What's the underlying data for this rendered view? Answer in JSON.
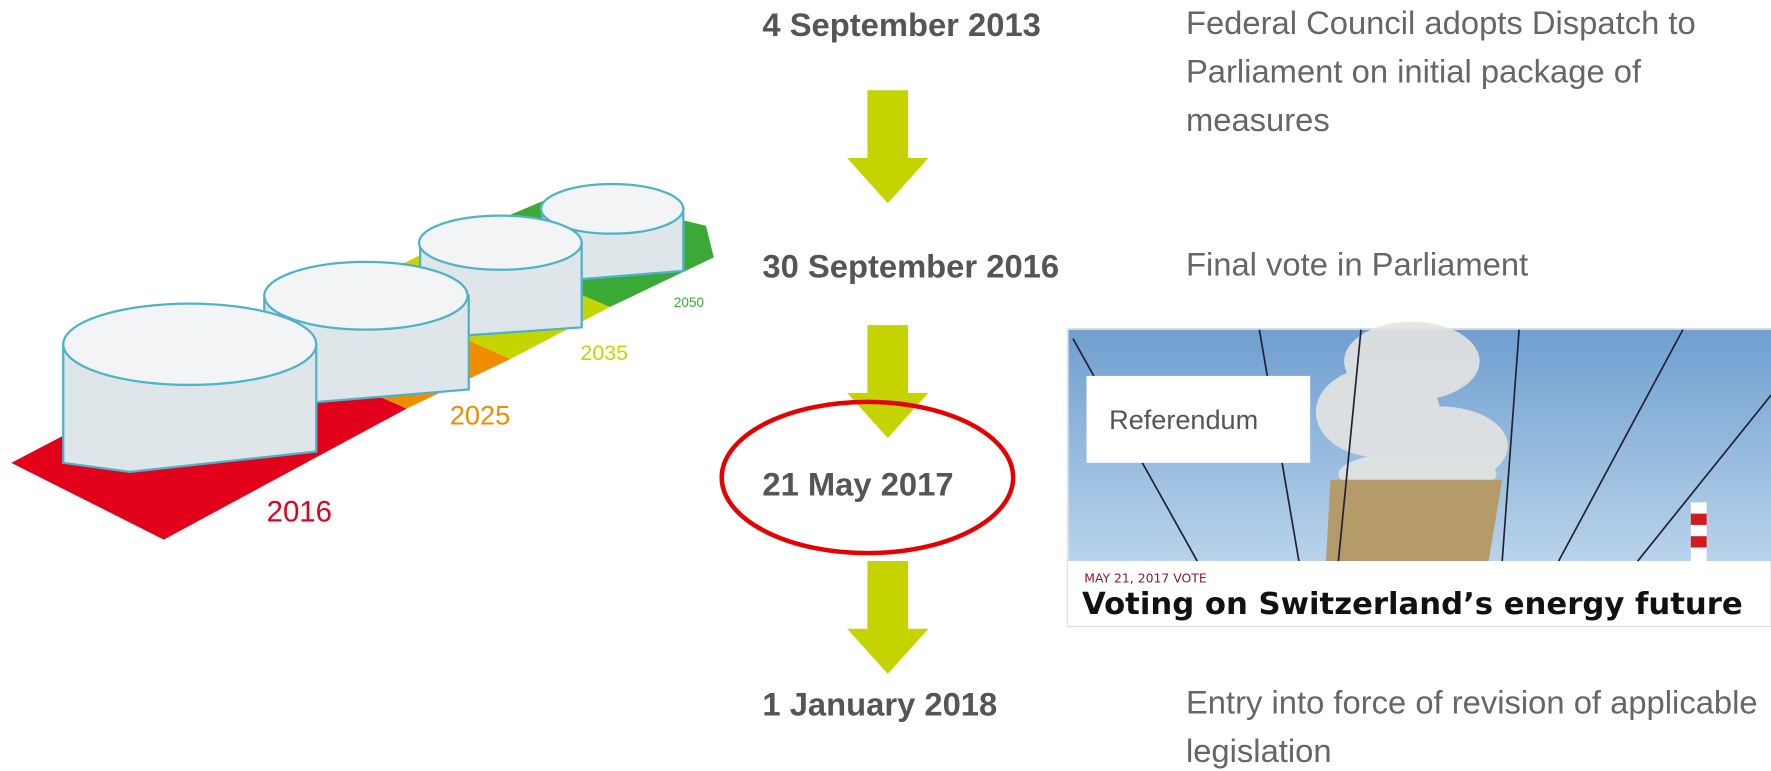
{
  "illustration": {
    "years": [
      "2016",
      "2025",
      "2035",
      "2050"
    ]
  },
  "timeline": [
    {
      "date": "4 September 2013",
      "description": "Federal Council adopts Dispatch to Parliament on initial package of measures"
    },
    {
      "date": "30 September 2016",
      "description": "Final vote in Parliament"
    },
    {
      "date": "21 May 2017"
    },
    {
      "date": "1 January 2018",
      "description": "Entry into force of revision of applicable legislation"
    }
  ],
  "news": {
    "label": "Referendum",
    "kicker": "MAY 21, 2017 VOTE",
    "headline": "Voting on Switzerland’s energy future"
  }
}
